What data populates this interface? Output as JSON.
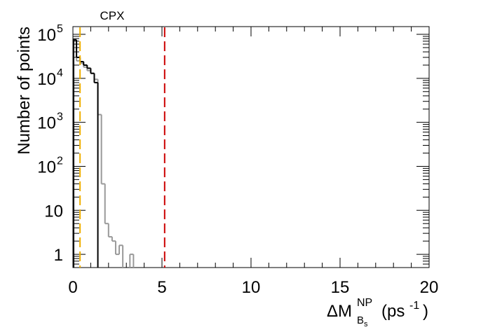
{
  "chart_data": {
    "type": "line",
    "title": "CPX",
    "xlabel": "ΔM",
    "xlabel_sub": "B",
    "xlabel_subsub": "s",
    "xlabel_sup": "NP",
    "xlabel_unit_pre": "(ps",
    "xlabel_unit_sup": "-1",
    "xlabel_unit_post": ")",
    "ylabel": "Number of points",
    "xlim": [
      0,
      20
    ],
    "ylim": [
      0.5,
      150000
    ],
    "y_scale": "log",
    "x_ticks": [
      0,
      5,
      10,
      15,
      20
    ],
    "x_tick_labels": [
      "0",
      "5",
      "10",
      "15",
      "20"
    ],
    "y_ticks": [
      1,
      10,
      100,
      1000,
      10000,
      100000
    ],
    "y_tick_labels": [
      {
        "base": "1",
        "exp": ""
      },
      {
        "base": "10",
        "exp": ""
      },
      {
        "base": "10",
        "exp": "2"
      },
      {
        "base": "10",
        "exp": "3"
      },
      {
        "base": "10",
        "exp": "4"
      },
      {
        "base": "10",
        "exp": "5"
      }
    ],
    "bin_width": 0.2,
    "series": [
      {
        "color": "#000000",
        "bin_starts": [
          0.0,
          0.2,
          0.4,
          0.6,
          0.8,
          1.0,
          1.2,
          1.4
        ],
        "values": [
          75000,
          30000,
          24000,
          20000,
          17000,
          13000,
          8000,
          0
        ]
      },
      {
        "color": "#999999",
        "bin_starts": [
          0.0,
          0.2,
          0.4,
          0.6,
          0.8,
          1.0,
          1.2,
          1.4,
          1.6,
          1.8,
          2.0,
          2.2,
          2.4,
          2.6,
          2.8,
          3.0,
          3.2
        ],
        "values": [
          50000,
          25000,
          22000,
          18000,
          15000,
          13000,
          9500,
          1500,
          40,
          5,
          2.5,
          2,
          1,
          1.6,
          0,
          0,
          1
        ]
      }
    ],
    "reference_lines": [
      {
        "x": 0.4,
        "color": "#f0b000",
        "style": "dashed"
      },
      {
        "x": 5.15,
        "color": "#cc0000",
        "style": "dashed"
      }
    ]
  }
}
